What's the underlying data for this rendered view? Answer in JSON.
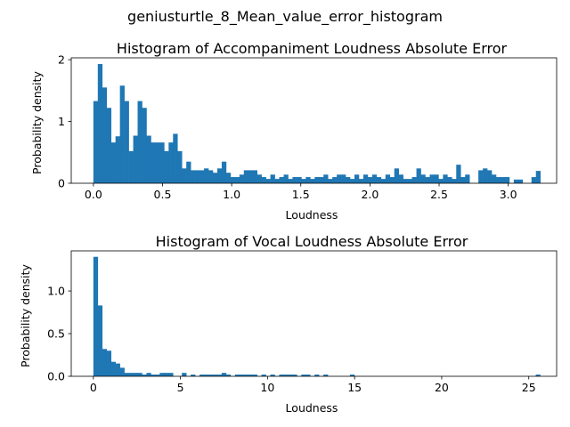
{
  "figure_title": "geniusturtle_8_Mean_value_error_histogram",
  "bar_color": "#1f77b4",
  "chart_data": [
    {
      "type": "bar",
      "title": "Histogram of Accompaniment Loudness Absolute Error",
      "xlabel": "Loudness",
      "ylabel": "Probability density",
      "xlim": [
        -0.16,
        3.35
      ],
      "ylim": [
        0,
        2.03
      ],
      "xticks": [
        0.0,
        0.5,
        1.0,
        1.5,
        2.0,
        2.5,
        3.0
      ],
      "xtick_labels": [
        "0.0",
        "0.5",
        "1.0",
        "1.5",
        "2.0",
        "2.5",
        "3.0"
      ],
      "yticks": [
        0,
        1,
        2
      ],
      "ytick_labels": [
        "0",
        "1",
        "2"
      ],
      "bin_start": 0.0,
      "bin_width": 0.032,
      "values": [
        1.33,
        1.93,
        1.55,
        1.22,
        0.66,
        0.76,
        1.58,
        1.33,
        0.52,
        0.77,
        1.33,
        1.22,
        0.77,
        0.66,
        0.66,
        0.66,
        0.52,
        0.66,
        0.8,
        0.52,
        0.24,
        0.35,
        0.21,
        0.21,
        0.21,
        0.24,
        0.21,
        0.17,
        0.24,
        0.35,
        0.17,
        0.1,
        0.1,
        0.14,
        0.21,
        0.21,
        0.21,
        0.14,
        0.1,
        0.07,
        0.14,
        0.07,
        0.1,
        0.14,
        0.07,
        0.1,
        0.1,
        0.07,
        0.1,
        0.07,
        0.1,
        0.1,
        0.14,
        0.07,
        0.1,
        0.14,
        0.14,
        0.1,
        0.07,
        0.14,
        0.07,
        0.14,
        0.1,
        0.14,
        0.1,
        0.07,
        0.14,
        0.1,
        0.24,
        0.14,
        0.07,
        0.07,
        0.1,
        0.24,
        0.14,
        0.1,
        0.14,
        0.14,
        0.07,
        0.14,
        0.1,
        0.07,
        0.3,
        0.1,
        0.14,
        0.0,
        0.0,
        0.21,
        0.24,
        0.21,
        0.14,
        0.1,
        0.1,
        0.1,
        0.0,
        0.06,
        0.06,
        0.0,
        0.0,
        0.1,
        0.2
      ]
    },
    {
      "type": "bar",
      "title": "Histogram of Vocal Loudness Absolute Error",
      "xlabel": "Loudness",
      "ylabel": "Probability density",
      "xlim": [
        -1.27,
        26.6
      ],
      "ylim": [
        0,
        1.47
      ],
      "xticks": [
        0,
        5,
        10,
        15,
        20,
        25
      ],
      "xtick_labels": [
        "0",
        "5",
        "10",
        "15",
        "20",
        "25"
      ],
      "yticks": [
        0.0,
        0.5,
        1.0
      ],
      "ytick_labels": [
        "0.0",
        "0.5",
        "1.0"
      ],
      "bin_start": 0.0,
      "bin_width": 0.254,
      "values": [
        1.4,
        0.83,
        0.32,
        0.3,
        0.17,
        0.15,
        0.1,
        0.04,
        0.04,
        0.04,
        0.04,
        0.02,
        0.04,
        0.02,
        0.02,
        0.04,
        0.04,
        0.04,
        0.0,
        0.0,
        0.04,
        0.0,
        0.02,
        0.0,
        0.02,
        0.02,
        0.02,
        0.02,
        0.02,
        0.04,
        0.02,
        0.0,
        0.02,
        0.02,
        0.02,
        0.02,
        0.02,
        0.0,
        0.02,
        0.0,
        0.02,
        0.0,
        0.02,
        0.02,
        0.02,
        0.02,
        0.0,
        0.02,
        0.02,
        0.0,
        0.02,
        0.0,
        0.02,
        0.0,
        0.0,
        0.0,
        0.0,
        0.0,
        0.02,
        0.0,
        0.0,
        0.0,
        0.0,
        0.0,
        0.0,
        0.0,
        0.0,
        0.0,
        0.0,
        0.0,
        0.0,
        0.0,
        0.0,
        0.0,
        0.0,
        0.0,
        0.0,
        0.0,
        0.0,
        0.0,
        0.0,
        0.0,
        0.0,
        0.0,
        0.0,
        0.0,
        0.0,
        0.0,
        0.0,
        0.0,
        0.0,
        0.0,
        0.0,
        0.0,
        0.0,
        0.0,
        0.0,
        0.0,
        0.0,
        0.0,
        0.02
      ]
    }
  ]
}
